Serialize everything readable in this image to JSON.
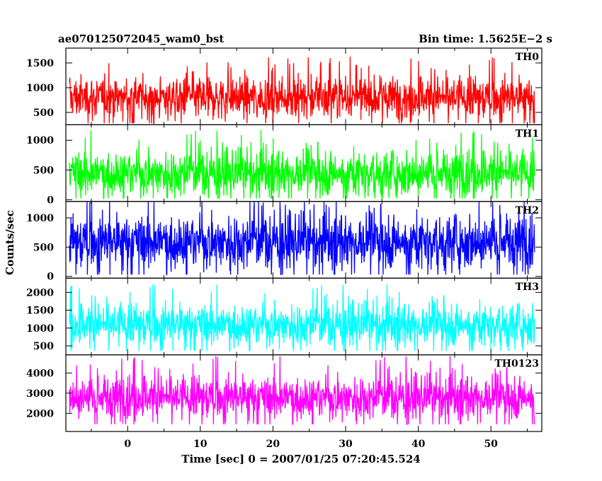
{
  "chart_data": {
    "type": "line",
    "title_left": "ae070125072045_wam0_bst",
    "title_right": "Bin time: 1.5625E−2 s",
    "xlabel": "Time [sec] 0 = 2007/01/25 07:20:45.524",
    "ylabel": "Counts/sec",
    "xlim": [
      -8.5,
      57
    ],
    "x_ticks": [
      0,
      10,
      20,
      30,
      40,
      50
    ],
    "panels": [
      {
        "name": "TH0",
        "color": "#ff0000",
        "ylim": [
          250,
          1800
        ],
        "y_ticks": [
          500,
          1000,
          1500
        ],
        "mean": 800,
        "spread": 260,
        "min": 280,
        "max": 1780
      },
      {
        "name": "TH1",
        "color": "#00ff00",
        "ylim": [
          -30,
          1260
        ],
        "y_ticks": [
          0,
          500,
          1000
        ],
        "mean": 450,
        "spread": 230,
        "min": 20,
        "max": 1250
      },
      {
        "name": "TH2",
        "color": "#0000ff",
        "ylim": [
          -30,
          1280
        ],
        "y_ticks": [
          0,
          500,
          1000
        ],
        "mean": 600,
        "spread": 280,
        "min": 30,
        "max": 1270
      },
      {
        "name": "TH3",
        "color": "#00ffff",
        "ylim": [
          250,
          2400
        ],
        "y_ticks": [
          500,
          1000,
          1500,
          2000
        ],
        "mean": 1100,
        "spread": 360,
        "min": 360,
        "max": 2380
      },
      {
        "name": "TH0123",
        "color": "#ff00ff",
        "ylim": [
          1100,
          4900
        ],
        "y_ticks": [
          2000,
          3000,
          4000
        ],
        "mean": 2800,
        "spread": 650,
        "min": 1450,
        "max": 4850
      }
    ]
  }
}
